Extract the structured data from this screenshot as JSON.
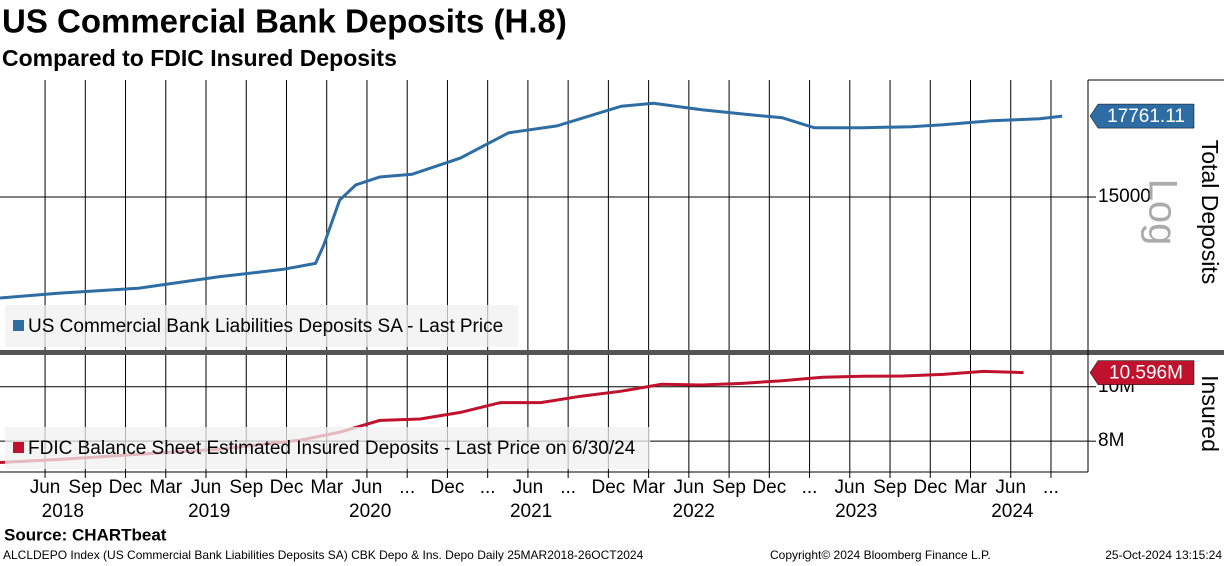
{
  "header": {
    "title": "US Commercial Bank Deposits (H.8)",
    "subtitle": "Compared to FDIC Insured Deposits"
  },
  "footer": {
    "source": "Source: CHARTbeat",
    "ticker": "ALCLDEPO Index (US Commercial Bank Liabilities Deposits SA) CBK Depo & Ins. Depo  Daily 25MAR2018-26OCT2024",
    "copyright": "Copyright© 2024 Bloomberg Finance L.P.",
    "timestamp": "25-Oct-2024 13:15:24"
  },
  "chart_data": [
    {
      "type": "line",
      "y_label": "Total Deposits",
      "scale_label": "Log",
      "log_scale": true,
      "grid": true,
      "xlim": [
        2018.14,
        2024.9
      ],
      "ylim": [
        10900,
        19150
      ],
      "yticks": [
        15000
      ],
      "series": [
        {
          "name": "US Commercial Bank Liabilities Deposits SA - Last Price",
          "color": "#2e6da4",
          "x": [
            2018.14,
            2018.5,
            2019.0,
            2019.5,
            2019.9,
            2020.1,
            2020.15,
            2020.25,
            2020.35,
            2020.5,
            2020.7,
            2021.0,
            2021.3,
            2021.6,
            2022.0,
            2022.2,
            2022.5,
            2022.8,
            2023.0,
            2023.2,
            2023.5,
            2023.8,
            2024.0,
            2024.3,
            2024.6,
            2024.74
          ],
          "values": [
            12150,
            12270,
            12400,
            12700,
            12900,
            13060,
            13550,
            14900,
            15380,
            15640,
            15730,
            16270,
            17150,
            17400,
            18130,
            18240,
            18000,
            17810,
            17700,
            17330,
            17330,
            17370,
            17440,
            17590,
            17660,
            17761.11
          ]
        }
      ]
    },
    {
      "type": "line",
      "y_label": "Insured",
      "log_scale": true,
      "grid": true,
      "xlim": [
        2018.14,
        2024.9
      ],
      "ylim": [
        7.05,
        11.39
      ],
      "yticks": [
        {
          "value": 10,
          "label": "10M"
        },
        {
          "value": 8,
          "label": "8M"
        }
      ],
      "xticks": [
        {
          "value": 2018.42,
          "label": "Jun"
        },
        {
          "value": 2018.67,
          "label": "Sep"
        },
        {
          "value": 2018.92,
          "label": "Dec"
        },
        {
          "value": 2019.17,
          "label": "Mar"
        },
        {
          "value": 2019.42,
          "label": "Jun"
        },
        {
          "value": 2019.67,
          "label": "Sep"
        },
        {
          "value": 2019.92,
          "label": "Dec"
        },
        {
          "value": 2020.17,
          "label": "Mar"
        },
        {
          "value": 2020.42,
          "label": "Jun"
        },
        {
          "value": 2020.67,
          "label": "..."
        },
        {
          "value": 2020.92,
          "label": "Dec"
        },
        {
          "value": 2021.17,
          "label": "..."
        },
        {
          "value": 2021.42,
          "label": "Jun"
        },
        {
          "value": 2021.67,
          "label": "..."
        },
        {
          "value": 2021.92,
          "label": "Dec"
        },
        {
          "value": 2022.17,
          "label": "Mar"
        },
        {
          "value": 2022.42,
          "label": "Jun"
        },
        {
          "value": 2022.67,
          "label": "Sep"
        },
        {
          "value": 2022.92,
          "label": "Dec"
        },
        {
          "value": 2023.17,
          "label": "..."
        },
        {
          "value": 2023.42,
          "label": "Jun"
        },
        {
          "value": 2023.67,
          "label": "Sep"
        },
        {
          "value": 2023.92,
          "label": "Dec"
        },
        {
          "value": 2024.17,
          "label": "Mar"
        },
        {
          "value": 2024.42,
          "label": "Jun"
        },
        {
          "value": 2024.67,
          "label": "..."
        }
      ],
      "year_labels": [
        {
          "value": 2018.53,
          "label": "2018"
        },
        {
          "value": 2019.44,
          "label": "2019"
        },
        {
          "value": 2020.44,
          "label": "2020"
        },
        {
          "value": 2021.44,
          "label": "2021"
        },
        {
          "value": 2022.45,
          "label": "2022"
        },
        {
          "value": 2023.46,
          "label": "2023"
        },
        {
          "value": 2024.43,
          "label": "2024"
        }
      ],
      "series": [
        {
          "name": "FDIC Balance Sheet Estimated Insured Deposits - Last Price on 6/30/24",
          "color": "#c0122c",
          "x": [
            2018.14,
            2018.5,
            2019.0,
            2019.5,
            2020.0,
            2020.25,
            2020.5,
            2020.75,
            2021.0,
            2021.25,
            2021.5,
            2021.75,
            2022.0,
            2022.25,
            2022.5,
            2022.75,
            2023.0,
            2023.25,
            2023.5,
            2023.75,
            2024.0,
            2024.25,
            2024.5
          ],
          "values": [
            7.33,
            7.42,
            7.58,
            7.74,
            8.03,
            8.3,
            8.71,
            8.76,
            9.0,
            9.37,
            9.37,
            9.62,
            9.82,
            10.1,
            10.07,
            10.14,
            10.25,
            10.4,
            10.44,
            10.45,
            10.52,
            10.65,
            10.596
          ],
          "value_labels": [
            null,
            null,
            null,
            null,
            null,
            null,
            null,
            null,
            null,
            null,
            null,
            null,
            null,
            null,
            null,
            null,
            null,
            null,
            null,
            null,
            null,
            null,
            "10.596M"
          ]
        }
      ]
    }
  ]
}
